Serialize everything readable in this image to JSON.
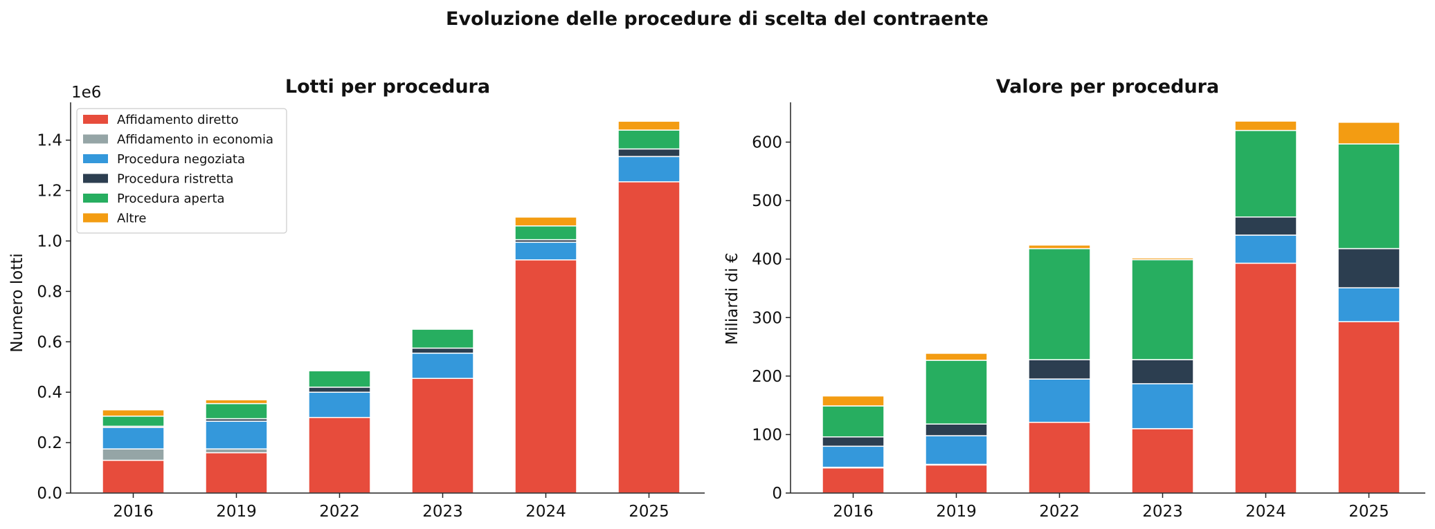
{
  "figure": {
    "suptitle": "Evoluzione delle procedure di scelta del contraente"
  },
  "colors": {
    "Affidamento diretto": "#e74c3c",
    "Affidamento in economia": "#95a5a6",
    "Procedura negoziata": "#3498db",
    "Procedura ristretta": "#2c3e50",
    "Procedura aperta": "#27ae60",
    "Altre": "#f39c12"
  },
  "chart_data": [
    {
      "type": "bar",
      "stacked": true,
      "title": "Lotti per procedura",
      "xlabel": "",
      "ylabel": "Numero lotti",
      "offset_label": "1e6",
      "ylim": [
        0,
        1.55
      ],
      "yticks": [
        0.0,
        0.2,
        0.4,
        0.6,
        0.8,
        1.0,
        1.2,
        1.4
      ],
      "ytick_labels": [
        "0.0",
        "0.2",
        "0.4",
        "0.6",
        "0.8",
        "1.0",
        "1.2",
        "1.4"
      ],
      "categories": [
        "2016",
        "2019",
        "2022",
        "2023",
        "2024",
        "2025"
      ],
      "legend": "top-left",
      "series": [
        {
          "name": "Affidamento diretto",
          "values": [
            0.13,
            0.16,
            0.3,
            0.455,
            0.925,
            1.235
          ]
        },
        {
          "name": "Affidamento in economia",
          "values": [
            0.045,
            0.015,
            0.0,
            0.0,
            0.0,
            0.0
          ]
        },
        {
          "name": "Procedura negoziata",
          "values": [
            0.085,
            0.11,
            0.1,
            0.1,
            0.07,
            0.1
          ]
        },
        {
          "name": "Procedura ristretta",
          "values": [
            0.005,
            0.01,
            0.02,
            0.02,
            0.01,
            0.03
          ]
        },
        {
          "name": "Procedura aperta",
          "values": [
            0.04,
            0.06,
            0.065,
            0.075,
            0.055,
            0.075
          ]
        },
        {
          "name": "Altre",
          "values": [
            0.025,
            0.015,
            0.0,
            0.0,
            0.035,
            0.035
          ]
        }
      ]
    },
    {
      "type": "bar",
      "stacked": true,
      "title": "Valore per procedura",
      "xlabel": "",
      "ylabel": "Miliardi di €",
      "ylim": [
        0,
        668
      ],
      "yticks": [
        0,
        100,
        200,
        300,
        400,
        500,
        600
      ],
      "ytick_labels": [
        "0",
        "100",
        "200",
        "300",
        "400",
        "500",
        "600"
      ],
      "categories": [
        "2016",
        "2019",
        "2022",
        "2023",
        "2024",
        "2025"
      ],
      "series": [
        {
          "name": "Affidamento diretto",
          "values": [
            43,
            48,
            121,
            110,
            393,
            293
          ]
        },
        {
          "name": "Affidamento in economia",
          "values": [
            1,
            1,
            0,
            0,
            0,
            0
          ]
        },
        {
          "name": "Procedura negoziata",
          "values": [
            36,
            49,
            74,
            77,
            48,
            58
          ]
        },
        {
          "name": "Procedura ristretta",
          "values": [
            16,
            20,
            33,
            41,
            31,
            67
          ]
        },
        {
          "name": "Procedura aperta",
          "values": [
            53,
            109,
            190,
            171,
            148,
            179
          ]
        },
        {
          "name": "Altre",
          "values": [
            17,
            12,
            6,
            3,
            16,
            37
          ]
        }
      ]
    }
  ]
}
